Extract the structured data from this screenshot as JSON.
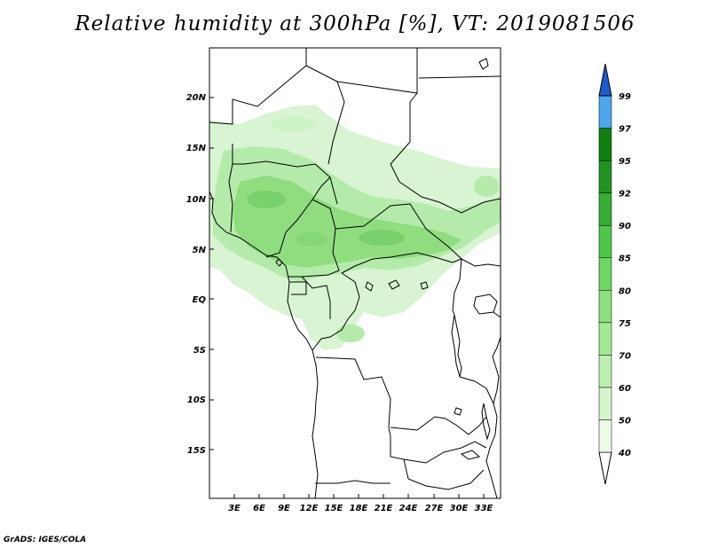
{
  "title": "Relative humidity at 300hPa [%], VT: 2019081506",
  "footer": "GrADS: IGES/COLA",
  "map": {
    "lat_ticks": [
      "20N",
      "15N",
      "10N",
      "5N",
      "EQ",
      "5S",
      "10S",
      "15S"
    ],
    "lon_ticks": [
      "3E",
      "6E",
      "9E",
      "12E",
      "15E",
      "18E",
      "21E",
      "24E",
      "27E",
      "30E",
      "33E"
    ]
  },
  "colorbar": {
    "levels": [
      "40",
      "50",
      "60",
      "70",
      "75",
      "80",
      "85",
      "90",
      "92",
      "95",
      "97",
      "99"
    ],
    "colors": [
      "#ecfbe8",
      "#d5f5cc",
      "#bdefb0",
      "#a4e894",
      "#8ce07b",
      "#6fd564",
      "#4fc64b",
      "#36ac35",
      "#219422",
      "#108010",
      "#4da6ee",
      "#2a7ee0",
      "#1b5dcf"
    ]
  },
  "colors": {
    "land_outline": "#000000",
    "frame": "#000000",
    "accent_green": "#7cd47a"
  }
}
